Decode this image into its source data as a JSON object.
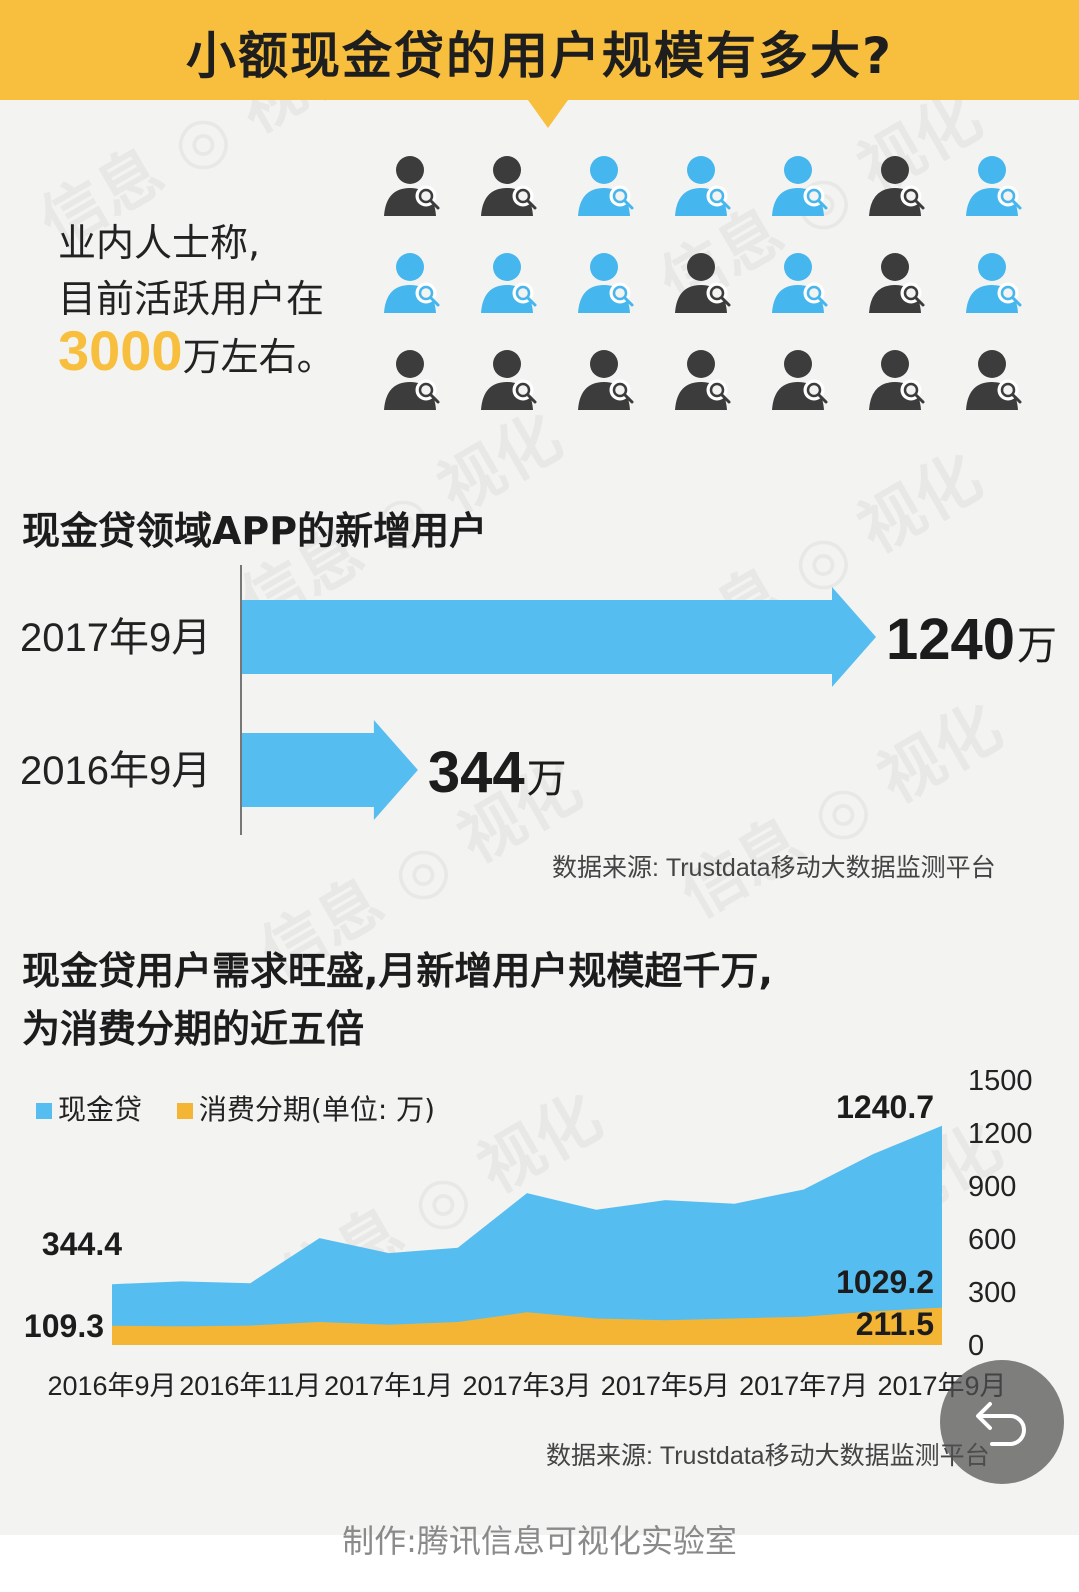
{
  "header": {
    "title": "小额现金贷的用户规模有多大?"
  },
  "statement": {
    "line1": "业内人士称,",
    "line2": "目前活跃用户在",
    "highlight": "3000",
    "suffix": "万左右。"
  },
  "people_icons": {
    "rows": 3,
    "cols": 7,
    "icon": "person-magnifier-icon",
    "colors": {
      "dark": "#3c3c3c",
      "blue": "#46b6ee"
    }
  },
  "arrow_section": {
    "title": "现金贷领域APP的新增用户",
    "bars": [
      {
        "label": "2017年9月",
        "value": 1240,
        "value_text": "1240",
        "unit": "万"
      },
      {
        "label": "2016年9月",
        "value": 344,
        "value_text": "344",
        "unit": "万"
      }
    ],
    "source": "数据来源: Trustdata移动大数据监测平台"
  },
  "area_section": {
    "title_line1": "现金贷用户需求旺盛,月新增用户规模超千万,",
    "title_line2": "为消费分期的近五倍",
    "legend": {
      "cash": "现金贷",
      "installment": "消费分期(单位: 万)"
    },
    "source": "数据来源: Trustdata移动大数据监测平台"
  },
  "chart_data": {
    "type": "area",
    "x": [
      "2016年9月",
      "2016年10月",
      "2016年11月",
      "2016年12月",
      "2017年1月",
      "2017年2月",
      "2017年3月",
      "2017年4月",
      "2017年5月",
      "2017年6月",
      "2017年7月",
      "2017年8月",
      "2017年9月"
    ],
    "x_tick_labels": [
      "2016年9月",
      "2016年11月",
      "2017年1月",
      "2017年3月",
      "2017年5月",
      "2017年7月",
      "2017年9月"
    ],
    "series": [
      {
        "name": "现金贷",
        "values": [
          344.4,
          360,
          350,
          605,
          520,
          550,
          860,
          765,
          820,
          800,
          880,
          1080,
          1240.7
        ],
        "color": "#56bdf0"
      },
      {
        "name": "消费分期",
        "values": [
          109.3,
          105,
          110,
          130,
          115,
          130,
          185,
          150,
          140,
          150,
          160,
          190,
          211.5
        ],
        "color": "#f5b534"
      }
    ],
    "annotations": [
      {
        "text": "344.4",
        "x": "2016年9月",
        "y": 344.4
      },
      {
        "text": "109.3",
        "x": "2016年9月",
        "y": 109.3
      },
      {
        "text": "1240.7",
        "x": "2017年9月",
        "y": 1240.7
      },
      {
        "text": "1029.2",
        "x": "2017年9月",
        "y": 1029.2
      },
      {
        "text": "211.5",
        "x": "2017年9月",
        "y": 211.5
      }
    ],
    "y_ticks": [
      0,
      300,
      600,
      900,
      1200,
      1500
    ],
    "ylim": [
      0,
      1500
    ],
    "y_axis_side": "right",
    "grid": false,
    "legend_position": "top-left"
  },
  "footer": {
    "text": "制作:腾讯信息可视化实验室"
  },
  "controls": {
    "back_icon": "back-arrow-icon"
  }
}
